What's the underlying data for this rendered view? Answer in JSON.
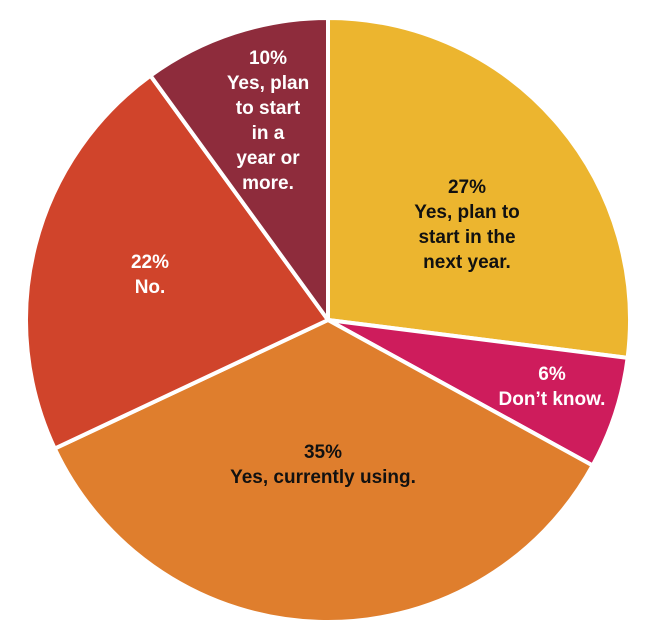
{
  "chart_data": {
    "type": "pie",
    "title": "",
    "slices": [
      {
        "value": 27,
        "percent_label": "27%",
        "label_lines": [
          "Yes, plan to",
          "start in the",
          "next year."
        ],
        "color": "#ECB52F",
        "text_color": "#111111"
      },
      {
        "value": 6,
        "percent_label": "6%",
        "label_lines": [
          "Don’t know."
        ],
        "color": "#CE1C5C",
        "text_color": "#ffffff"
      },
      {
        "value": 35,
        "percent_label": "35%",
        "label_lines": [
          "Yes, currently using."
        ],
        "color": "#DF7E2D",
        "text_color": "#111111"
      },
      {
        "value": 22,
        "percent_label": "22%",
        "label_lines": [
          "No."
        ],
        "color": "#D0442B",
        "text_color": "#ffffff"
      },
      {
        "value": 10,
        "percent_label": "10%",
        "label_lines": [
          "Yes, plan",
          "to start",
          "in a",
          "year or",
          "more."
        ],
        "color": "#8E2C3C",
        "text_color": "#ffffff"
      }
    ]
  }
}
